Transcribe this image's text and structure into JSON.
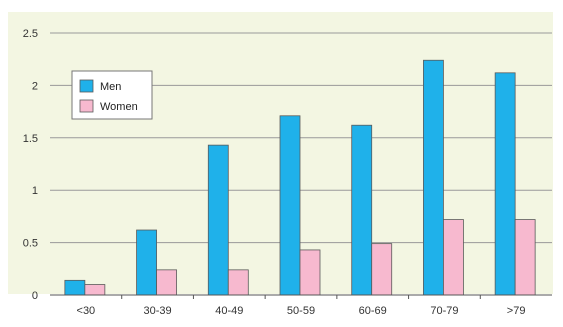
{
  "chart_data": {
    "type": "bar",
    "title": "",
    "xlabel": "",
    "ylabel": "",
    "categories": [
      "<30",
      "30-39",
      "40-49",
      "50-59",
      "60-69",
      "70-79",
      ">79"
    ],
    "series": [
      {
        "name": "Men",
        "values": [
          0.14,
          0.62,
          1.43,
          1.71,
          1.62,
          2.24,
          2.12
        ],
        "color": "#1fb1ea"
      },
      {
        "name": "Women",
        "values": [
          0.1,
          0.24,
          0.24,
          0.43,
          0.49,
          0.72,
          0.72
        ],
        "color": "#f7b9cf"
      }
    ],
    "ylim": [
      0,
      2.5
    ],
    "yticks": [
      0,
      0.5,
      1,
      1.5,
      2,
      2.5
    ],
    "ytick_labels": [
      "0",
      "0.5",
      "1",
      "1.5",
      "2",
      "2.5"
    ],
    "grid": true,
    "legend_position": "top-left",
    "plot_background": "#f3f6e2",
    "grid_color": "#999999"
  }
}
